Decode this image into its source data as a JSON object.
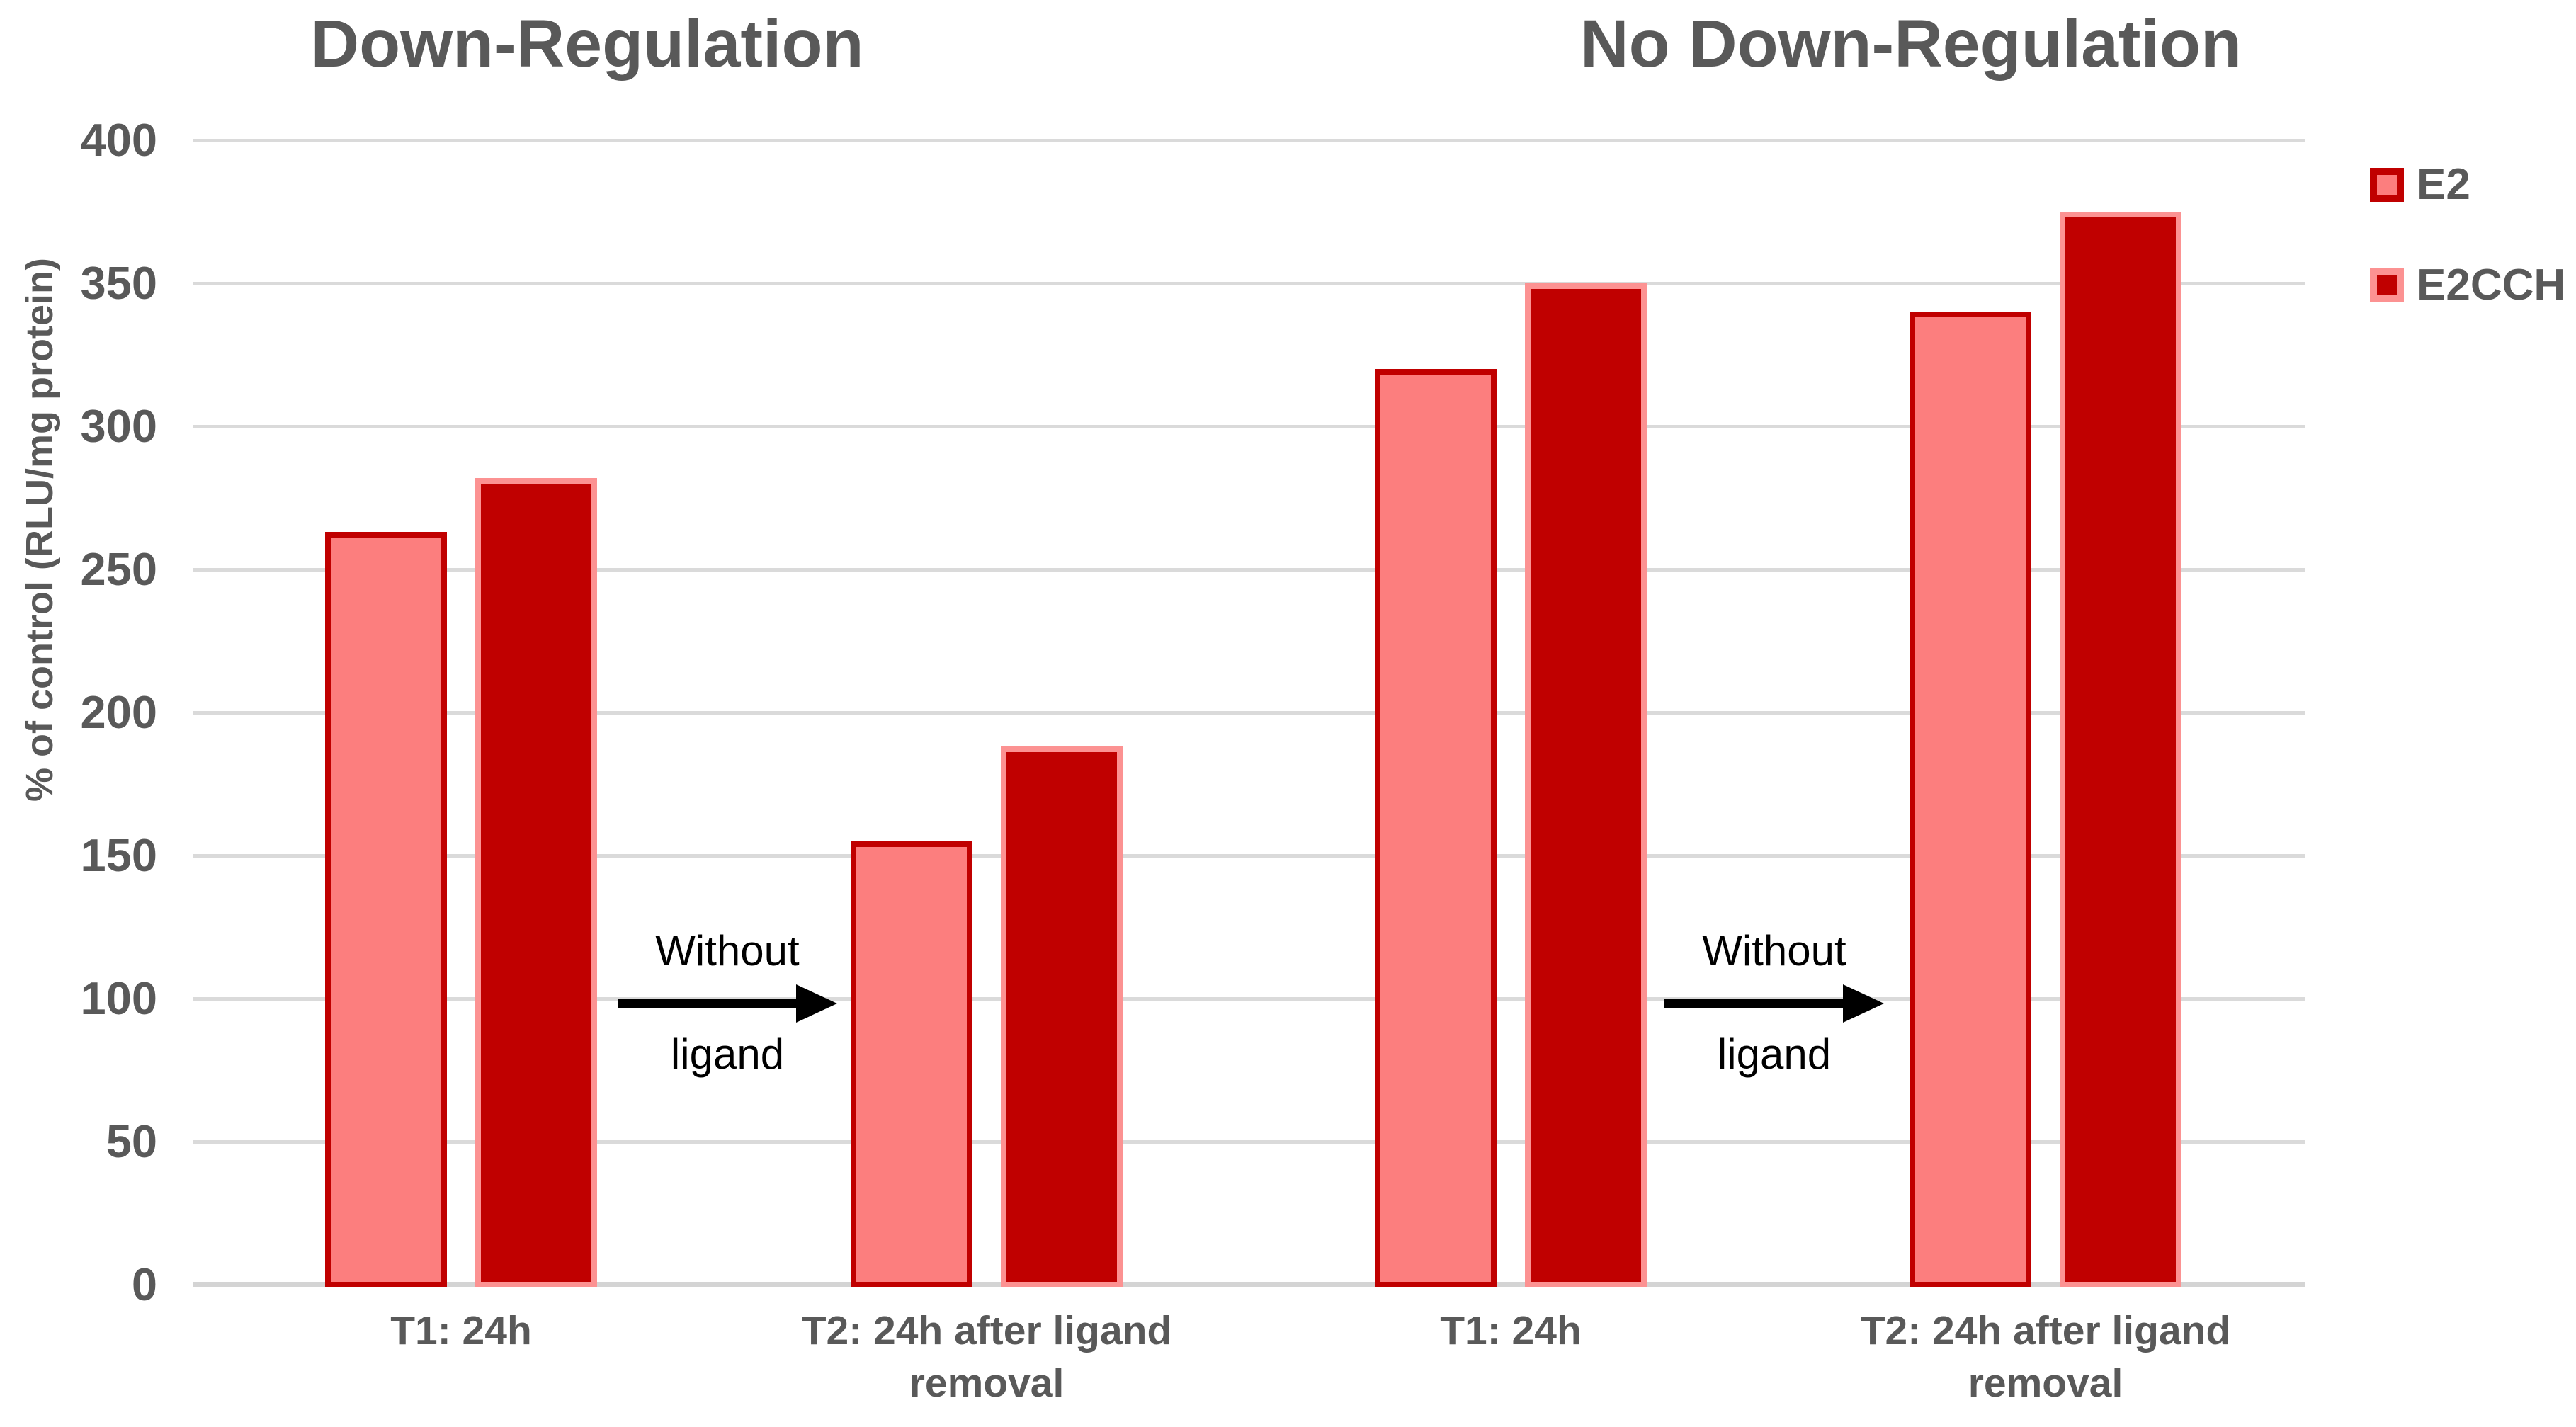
{
  "chart_data": {
    "type": "bar",
    "titles": [
      "Down-Regulation",
      "No Down-Regulation"
    ],
    "ylabel": "% of control (RLU/mg protein)",
    "ylim": [
      0,
      400
    ],
    "yticks": [
      0,
      50,
      100,
      150,
      200,
      250,
      300,
      350,
      400
    ],
    "grid": true,
    "legend_position": "top-right",
    "series": [
      {
        "name": "E2",
        "fill": "#FC7E7E",
        "border": "#C00000"
      },
      {
        "name": "E2CCH",
        "fill": "#C00000",
        "border": "#FC9292"
      }
    ],
    "groups": [
      {
        "section": "Down-Regulation",
        "category": "T1: 24h",
        "category_lines": [
          "T1: 24h"
        ],
        "E2": 263,
        "E2CCH": 282
      },
      {
        "section": "Down-Regulation",
        "category": "T2: 24h after ligand removal",
        "category_lines": [
          "T2: 24h after ligand",
          "removal"
        ],
        "E2": 155,
        "E2CCH": 188
      },
      {
        "section": "No Down-Regulation",
        "category": "T1: 24h",
        "category_lines": [
          "T1: 24h"
        ],
        "E2": 320,
        "E2CCH": 350
      },
      {
        "section": "No Down-Regulation",
        "category": "T2: 24h after ligand removal",
        "category_lines": [
          "T2: 24h after ligand",
          "removal"
        ],
        "E2": 340,
        "E2CCH": 375
      }
    ],
    "annotations": [
      {
        "line1": "Without",
        "line2": "ligand"
      },
      {
        "line1": "Without",
        "line2": "ligand"
      }
    ]
  },
  "colors": {
    "label_text": "#595959",
    "gridline": "#DADADA",
    "annotation_text": "#000000"
  }
}
